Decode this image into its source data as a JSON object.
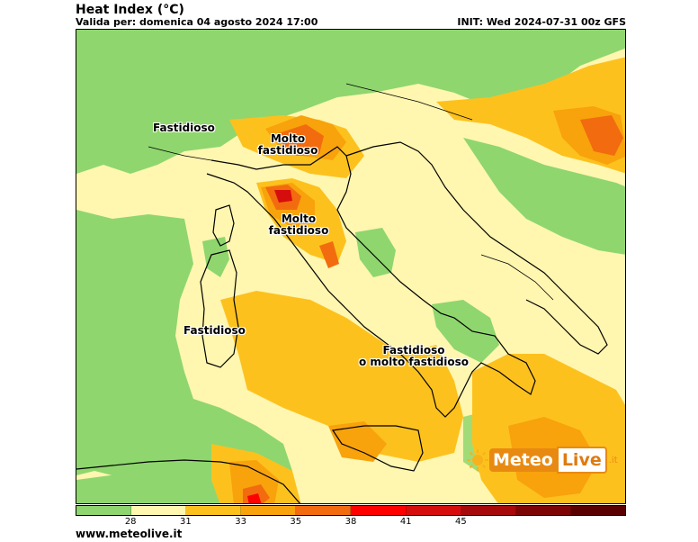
{
  "header": {
    "title": "Heat Index (°C)",
    "valid": "Valida per: domenica 04 agosto 2024 17:00",
    "init": "INIT: Wed 2024-07-31 00z GFS"
  },
  "map": {
    "labels": [
      {
        "name": "label-fastidioso-north",
        "line1": "Fastidioso",
        "line2": ""
      },
      {
        "name": "label-molto-fastidioso-po",
        "line1": "Molto",
        "line2": "fastidioso"
      },
      {
        "name": "label-molto-fastidioso-tuscany",
        "line1": "Molto",
        "line2": "fastidioso"
      },
      {
        "name": "label-fastidioso-sardinia",
        "line1": "Fastidioso",
        "line2": ""
      },
      {
        "name": "label-fastidioso-south",
        "line1": "Fastidioso",
        "line2": "o molto fastidioso"
      }
    ]
  },
  "legend": {
    "colors": [
      "#8fd66e",
      "#fff6b0",
      "#fdc11e",
      "#f8a20c",
      "#f26b0f",
      "#ff0000",
      "#d60d0d",
      "#a60a0a",
      "#7d0505",
      "#5a0000"
    ],
    "ticks": [
      "28",
      "31",
      "33",
      "35",
      "38",
      "41",
      "45"
    ]
  },
  "logo": {
    "word1": "Meteo",
    "word2": "Live",
    "tld": ".it"
  },
  "footer": {
    "site": "www.meteolive.it"
  }
}
